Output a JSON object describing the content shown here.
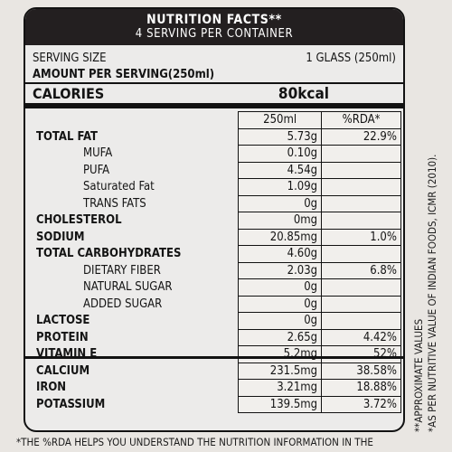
{
  "header": {
    "title": "NUTRITION FACTS**",
    "subtitle": "4 SERVING PER CONTAINER"
  },
  "serving": {
    "label": "SERVING SIZE",
    "value": "1 GLASS (250ml)",
    "amount_label": "AMOUNT PER SERVING(250ml)"
  },
  "calories": {
    "label": "CALORIES",
    "value": "80kcal"
  },
  "table": {
    "col_value": "250ml",
    "col_rda": "%RDA*",
    "rows": [
      {
        "label": "TOTAL FAT",
        "value": "5.73g",
        "rda": "22.9%"
      },
      {
        "label": "MUFA",
        "value": "0.10g",
        "rda": ""
      },
      {
        "label": "PUFA",
        "value": "4.54g",
        "rda": ""
      },
      {
        "label": "Saturated Fat",
        "value": "1.09g",
        "rda": ""
      },
      {
        "label": "TRANS FATS",
        "value": "0g",
        "rda": ""
      },
      {
        "label": "CHOLESTEROL",
        "value": "0mg",
        "rda": ""
      },
      {
        "label": "SODIUM",
        "value": "20.85mg",
        "rda": "1.0%"
      },
      {
        "label": "TOTAL CARBOHYDRATES",
        "value": "4.60g",
        "rda": ""
      },
      {
        "label": "DIETARY FIBER",
        "value": "2.03g",
        "rda": "6.8%"
      },
      {
        "label": "NATURAL SUGAR",
        "value": "0g",
        "rda": ""
      },
      {
        "label": "ADDED SUGAR",
        "value": "0g",
        "rda": ""
      },
      {
        "label": "LACTOSE",
        "value": "0g",
        "rda": ""
      },
      {
        "label": "PROTEIN",
        "value": "2.65g",
        "rda": "4.42%"
      },
      {
        "label": "VITAMIN E",
        "value": "5.2mg",
        "rda": "52%"
      },
      {
        "label": "CALCIUM",
        "value": "231.5mg",
        "rda": "38.58%"
      },
      {
        "label": "IRON",
        "value": "3.21mg",
        "rda": "18.88%"
      },
      {
        "label": "POTASSIUM",
        "value": "139.5mg",
        "rda": "3.72%"
      }
    ]
  },
  "side_note": {
    "line1": "**APPROXIMATE VALUES",
    "line2": "*AS PER NUTRITIVE VALUE OF INDIAN FOODS, ICMR (2010)."
  },
  "footer": "*THE %RDA HELPS YOU UNDERSTAND THE NUTRITION INFORMATION IN THE"
}
